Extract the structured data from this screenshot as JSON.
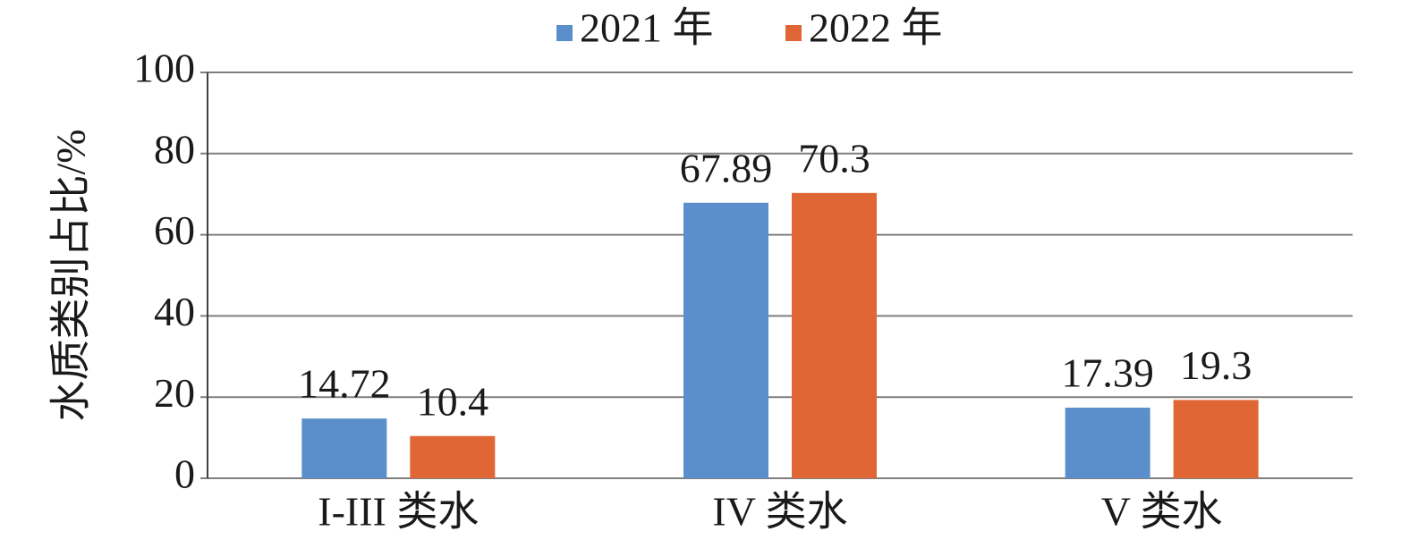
{
  "chart_data": {
    "type": "bar",
    "y_label": "水质类别占比/%",
    "categories": [
      "I-III 类水",
      "IV 类水",
      "V 类水"
    ],
    "series": [
      {
        "name": "2021 年",
        "color": "#5b8fcb",
        "values": [
          14.72,
          67.89,
          17.39
        ]
      },
      {
        "name": "2022 年",
        "color": "#e06636",
        "values": [
          10.4,
          70.3,
          19.3
        ]
      }
    ],
    "ylim": [
      0,
      100
    ],
    "yticks": [
      0,
      20,
      40,
      60,
      80,
      100
    ],
    "grid": true,
    "legend": "top"
  }
}
